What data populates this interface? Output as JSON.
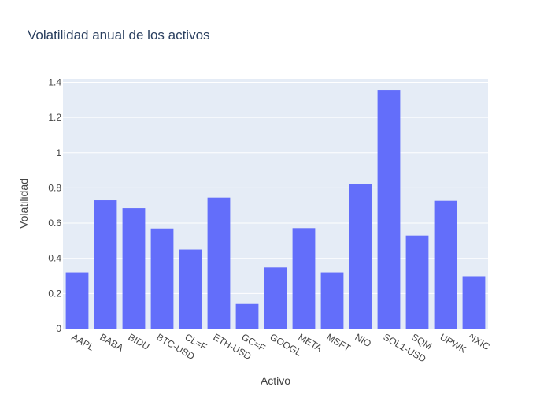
{
  "chart_data": {
    "type": "bar",
    "title": "Volatilidad anual de los activos",
    "xlabel": "Activo",
    "ylabel": "Volatilidad",
    "categories": [
      "AAPL",
      "BABA",
      "BIDU",
      "BTC-USD",
      "CL=F",
      "ETH-USD",
      "GC=F",
      "GOOGL",
      "META",
      "MSFT",
      "NIO",
      "SOL1-USD",
      "SQM",
      "UPWK",
      "^IXIC"
    ],
    "values": [
      0.32,
      0.73,
      0.685,
      0.57,
      0.45,
      0.745,
      0.14,
      0.348,
      0.572,
      0.32,
      0.82,
      1.357,
      0.53,
      0.727,
      0.298
    ],
    "ylim": [
      0,
      1.42
    ],
    "yticks": [
      0,
      0.2,
      0.4,
      0.6,
      0.8,
      1,
      1.2,
      1.4
    ],
    "ytick_labels": [
      "0",
      "0.2",
      "0.4",
      "0.6",
      "0.8",
      "1",
      "1.2",
      "1.4"
    ],
    "grid": true,
    "colors": {
      "bar": "#636efa",
      "plot_bg": "#e5ecf6",
      "grid": "#ffffff",
      "text": "#444444",
      "title": "#2a3f5f"
    }
  }
}
